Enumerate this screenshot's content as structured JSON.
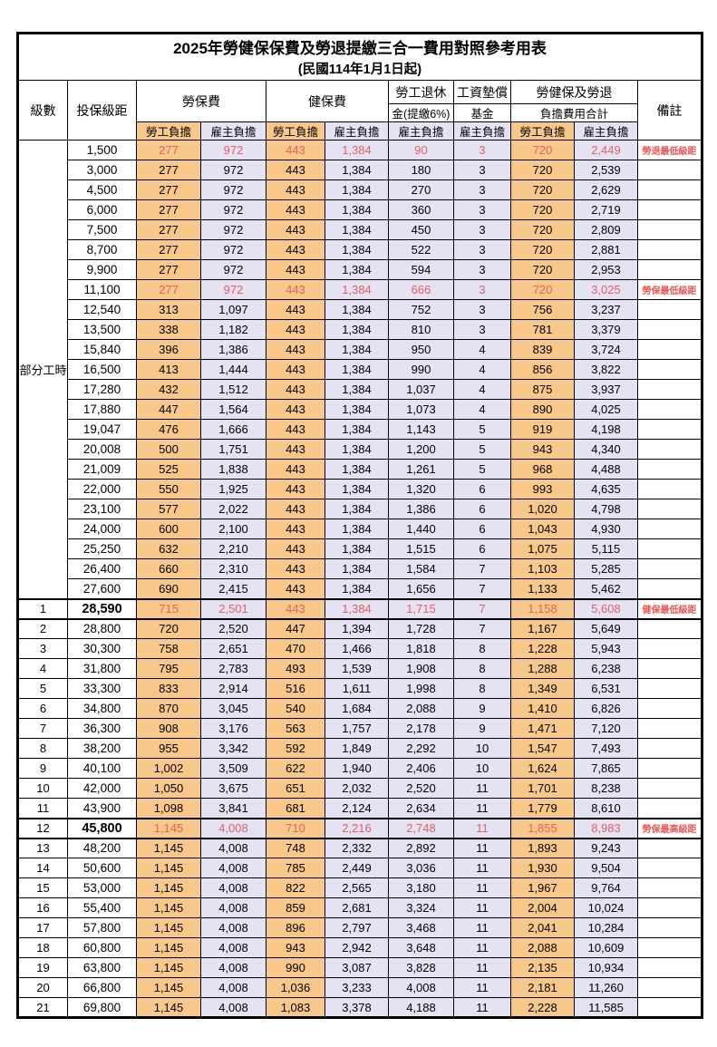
{
  "title": "2025年勞健保保費及勞退提繳三合一費用對照參考用表",
  "subtitle": "(民國114年1月1日起)",
  "header": {
    "level": "級數",
    "bracket": "投保級距",
    "labor": "勞保費",
    "health": "健保費",
    "pension_line1": "勞工退休",
    "pension_line2": "金(提繳6%)",
    "fund_line1": "工資墊償",
    "fund_line2": "基金",
    "total_line1": "勞健保及勞退",
    "total_line2": "負擔費用合計",
    "remark": "備註",
    "employee": "勞工負擔",
    "employer": "雇主負擔"
  },
  "part_time_label": "部分工時",
  "colors": {
    "employee_bg": "#f8c88a",
    "employer_bg": "#e4e2f3",
    "highlight_text": "#e06262",
    "remark_text": "#f05555"
  },
  "rows": [
    {
      "level": "",
      "bracket": "1,500",
      "values": [
        "277",
        "972",
        "443",
        "1,384",
        "90",
        "3",
        "720",
        "2,449"
      ],
      "remark": "勞退最低級距",
      "red": true,
      "bold": false
    },
    {
      "level": "",
      "bracket": "3,000",
      "values": [
        "277",
        "972",
        "443",
        "1,384",
        "180",
        "3",
        "720",
        "2,539"
      ],
      "remark": "",
      "red": false,
      "bold": false
    },
    {
      "level": "",
      "bracket": "4,500",
      "values": [
        "277",
        "972",
        "443",
        "1,384",
        "270",
        "3",
        "720",
        "2,629"
      ],
      "remark": "",
      "red": false,
      "bold": false
    },
    {
      "level": "",
      "bracket": "6,000",
      "values": [
        "277",
        "972",
        "443",
        "1,384",
        "360",
        "3",
        "720",
        "2,719"
      ],
      "remark": "",
      "red": false,
      "bold": false
    },
    {
      "level": "",
      "bracket": "7,500",
      "values": [
        "277",
        "972",
        "443",
        "1,384",
        "450",
        "3",
        "720",
        "2,809"
      ],
      "remark": "",
      "red": false,
      "bold": false
    },
    {
      "level": "",
      "bracket": "8,700",
      "values": [
        "277",
        "972",
        "443",
        "1,384",
        "522",
        "3",
        "720",
        "2,881"
      ],
      "remark": "",
      "red": false,
      "bold": false
    },
    {
      "level": "",
      "bracket": "9,900",
      "values": [
        "277",
        "972",
        "443",
        "1,384",
        "594",
        "3",
        "720",
        "2,953"
      ],
      "remark": "",
      "red": false,
      "bold": false
    },
    {
      "level": "",
      "bracket": "11,100",
      "values": [
        "277",
        "972",
        "443",
        "1,384",
        "666",
        "3",
        "720",
        "3,025"
      ],
      "remark": "勞保最低級距",
      "red": true,
      "bold": false
    },
    {
      "level": "",
      "bracket": "12,540",
      "values": [
        "313",
        "1,097",
        "443",
        "1,384",
        "752",
        "3",
        "756",
        "3,237"
      ],
      "remark": "",
      "red": false,
      "bold": false
    },
    {
      "level": "",
      "bracket": "13,500",
      "values": [
        "338",
        "1,182",
        "443",
        "1,384",
        "810",
        "3",
        "781",
        "3,379"
      ],
      "remark": "",
      "red": false,
      "bold": false
    },
    {
      "level": "",
      "bracket": "15,840",
      "values": [
        "396",
        "1,386",
        "443",
        "1,384",
        "950",
        "4",
        "839",
        "3,724"
      ],
      "remark": "",
      "red": false,
      "bold": false
    },
    {
      "level": "",
      "bracket": "16,500",
      "values": [
        "413",
        "1,444",
        "443",
        "1,384",
        "990",
        "4",
        "856",
        "3,822"
      ],
      "remark": "",
      "red": false,
      "bold": false
    },
    {
      "level": "",
      "bracket": "17,280",
      "values": [
        "432",
        "1,512",
        "443",
        "1,384",
        "1,037",
        "4",
        "875",
        "3,937"
      ],
      "remark": "",
      "red": false,
      "bold": false
    },
    {
      "level": "",
      "bracket": "17,880",
      "values": [
        "447",
        "1,564",
        "443",
        "1,384",
        "1,073",
        "4",
        "890",
        "4,025"
      ],
      "remark": "",
      "red": false,
      "bold": false
    },
    {
      "level": "",
      "bracket": "19,047",
      "values": [
        "476",
        "1,666",
        "443",
        "1,384",
        "1,143",
        "5",
        "919",
        "4,198"
      ],
      "remark": "",
      "red": false,
      "bold": false
    },
    {
      "level": "",
      "bracket": "20,008",
      "values": [
        "500",
        "1,751",
        "443",
        "1,384",
        "1,200",
        "5",
        "943",
        "4,340"
      ],
      "remark": "",
      "red": false,
      "bold": false
    },
    {
      "level": "",
      "bracket": "21,009",
      "values": [
        "525",
        "1,838",
        "443",
        "1,384",
        "1,261",
        "5",
        "968",
        "4,488"
      ],
      "remark": "",
      "red": false,
      "bold": false
    },
    {
      "level": "",
      "bracket": "22,000",
      "values": [
        "550",
        "1,925",
        "443",
        "1,384",
        "1,320",
        "6",
        "993",
        "4,635"
      ],
      "remark": "",
      "red": false,
      "bold": false
    },
    {
      "level": "",
      "bracket": "23,100",
      "values": [
        "577",
        "2,022",
        "443",
        "1,384",
        "1,386",
        "6",
        "1,020",
        "4,798"
      ],
      "remark": "",
      "red": false,
      "bold": false
    },
    {
      "level": "",
      "bracket": "24,000",
      "values": [
        "600",
        "2,100",
        "443",
        "1,384",
        "1,440",
        "6",
        "1,043",
        "4,930"
      ],
      "remark": "",
      "red": false,
      "bold": false
    },
    {
      "level": "",
      "bracket": "25,250",
      "values": [
        "632",
        "2,210",
        "443",
        "1,384",
        "1,515",
        "6",
        "1,075",
        "5,115"
      ],
      "remark": "",
      "red": false,
      "bold": false
    },
    {
      "level": "",
      "bracket": "26,400",
      "values": [
        "660",
        "2,310",
        "443",
        "1,384",
        "1,584",
        "7",
        "1,103",
        "5,285"
      ],
      "remark": "",
      "red": false,
      "bold": false
    },
    {
      "level": "",
      "bracket": "27,600",
      "values": [
        "690",
        "2,415",
        "443",
        "1,384",
        "1,656",
        "7",
        "1,133",
        "5,462"
      ],
      "remark": "",
      "red": false,
      "bold": false
    },
    {
      "level": "1",
      "bracket": "28,590",
      "values": [
        "715",
        "2,501",
        "443",
        "1,384",
        "1,715",
        "7",
        "1,158",
        "5,608"
      ],
      "remark": "健保最低級距",
      "red": true,
      "bold": true
    },
    {
      "level": "2",
      "bracket": "28,800",
      "values": [
        "720",
        "2,520",
        "447",
        "1,394",
        "1,728",
        "7",
        "1,167",
        "5,649"
      ],
      "remark": "",
      "red": false,
      "bold": false
    },
    {
      "level": "3",
      "bracket": "30,300",
      "values": [
        "758",
        "2,651",
        "470",
        "1,466",
        "1,818",
        "8",
        "1,228",
        "5,943"
      ],
      "remark": "",
      "red": false,
      "bold": false
    },
    {
      "level": "4",
      "bracket": "31,800",
      "values": [
        "795",
        "2,783",
        "493",
        "1,539",
        "1,908",
        "8",
        "1,288",
        "6,238"
      ],
      "remark": "",
      "red": false,
      "bold": false
    },
    {
      "level": "5",
      "bracket": "33,300",
      "values": [
        "833",
        "2,914",
        "516",
        "1,611",
        "1,998",
        "8",
        "1,349",
        "6,531"
      ],
      "remark": "",
      "red": false,
      "bold": false
    },
    {
      "level": "6",
      "bracket": "34,800",
      "values": [
        "870",
        "3,045",
        "540",
        "1,684",
        "2,088",
        "9",
        "1,410",
        "6,826"
      ],
      "remark": "",
      "red": false,
      "bold": false
    },
    {
      "level": "7",
      "bracket": "36,300",
      "values": [
        "908",
        "3,176",
        "563",
        "1,757",
        "2,178",
        "9",
        "1,471",
        "7,120"
      ],
      "remark": "",
      "red": false,
      "bold": false
    },
    {
      "level": "8",
      "bracket": "38,200",
      "values": [
        "955",
        "3,342",
        "592",
        "1,849",
        "2,292",
        "10",
        "1,547",
        "7,493"
      ],
      "remark": "",
      "red": false,
      "bold": false
    },
    {
      "level": "9",
      "bracket": "40,100",
      "values": [
        "1,002",
        "3,509",
        "622",
        "1,940",
        "2,406",
        "10",
        "1,624",
        "7,865"
      ],
      "remark": "",
      "red": false,
      "bold": false
    },
    {
      "level": "10",
      "bracket": "42,000",
      "values": [
        "1,050",
        "3,675",
        "651",
        "2,032",
        "2,520",
        "11",
        "1,701",
        "8,238"
      ],
      "remark": "",
      "red": false,
      "bold": false
    },
    {
      "level": "11",
      "bracket": "43,900",
      "values": [
        "1,098",
        "3,841",
        "681",
        "2,124",
        "2,634",
        "11",
        "1,779",
        "8,610"
      ],
      "remark": "",
      "red": false,
      "bold": false
    },
    {
      "level": "12",
      "bracket": "45,800",
      "values": [
        "1,145",
        "4,008",
        "710",
        "2,216",
        "2,748",
        "11",
        "1,855",
        "8,983"
      ],
      "remark": "勞保最高級距",
      "red": true,
      "bold": true
    },
    {
      "level": "13",
      "bracket": "48,200",
      "values": [
        "1,145",
        "4,008",
        "748",
        "2,332",
        "2,892",
        "11",
        "1,893",
        "9,243"
      ],
      "remark": "",
      "red": false,
      "bold": false
    },
    {
      "level": "14",
      "bracket": "50,600",
      "values": [
        "1,145",
        "4,008",
        "785",
        "2,449",
        "3,036",
        "11",
        "1,930",
        "9,504"
      ],
      "remark": "",
      "red": false,
      "bold": false
    },
    {
      "level": "15",
      "bracket": "53,000",
      "values": [
        "1,145",
        "4,008",
        "822",
        "2,565",
        "3,180",
        "11",
        "1,967",
        "9,764"
      ],
      "remark": "",
      "red": false,
      "bold": false
    },
    {
      "level": "16",
      "bracket": "55,400",
      "values": [
        "1,145",
        "4,008",
        "859",
        "2,681",
        "3,324",
        "11",
        "2,004",
        "10,024"
      ],
      "remark": "",
      "red": false,
      "bold": false
    },
    {
      "level": "17",
      "bracket": "57,800",
      "values": [
        "1,145",
        "4,008",
        "896",
        "2,797",
        "3,468",
        "11",
        "2,041",
        "10,284"
      ],
      "remark": "",
      "red": false,
      "bold": false
    },
    {
      "level": "18",
      "bracket": "60,800",
      "values": [
        "1,145",
        "4,008",
        "943",
        "2,942",
        "3,648",
        "11",
        "2,088",
        "10,609"
      ],
      "remark": "",
      "red": false,
      "bold": false
    },
    {
      "level": "19",
      "bracket": "63,800",
      "values": [
        "1,145",
        "4,008",
        "990",
        "3,087",
        "3,828",
        "11",
        "2,135",
        "10,934"
      ],
      "remark": "",
      "red": false,
      "bold": false
    },
    {
      "level": "20",
      "bracket": "66,800",
      "values": [
        "1,145",
        "4,008",
        "1,036",
        "3,233",
        "4,008",
        "11",
        "2,181",
        "11,260"
      ],
      "remark": "",
      "red": false,
      "bold": false
    },
    {
      "level": "21",
      "bracket": "69,800",
      "values": [
        "1,145",
        "4,008",
        "1,083",
        "3,378",
        "4,188",
        "11",
        "2,228",
        "11,585"
      ],
      "remark": "",
      "red": false,
      "bold": false
    }
  ]
}
